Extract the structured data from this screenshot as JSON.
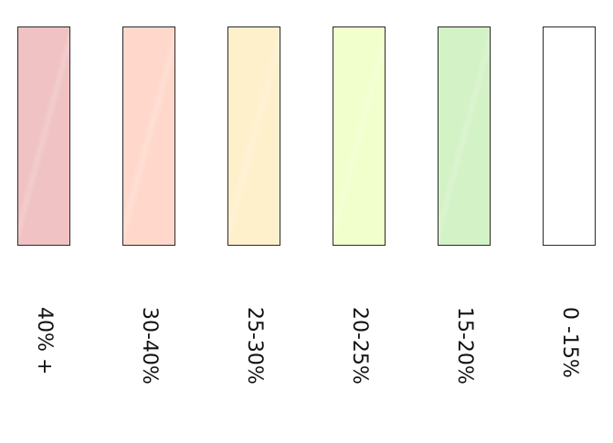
{
  "legend": {
    "items": [
      {
        "label": "40% +",
        "color": "#f0c2c3"
      },
      {
        "label": "30-40%",
        "color": "#ffd8cb"
      },
      {
        "label": "25-30%",
        "color": "#fff0cc"
      },
      {
        "label": "20-25%",
        "color": "#f1ffcc"
      },
      {
        "label": "15-20%",
        "color": "#d3f2c6"
      },
      {
        "label": "0 -15%",
        "color": "#ffffff"
      }
    ]
  }
}
